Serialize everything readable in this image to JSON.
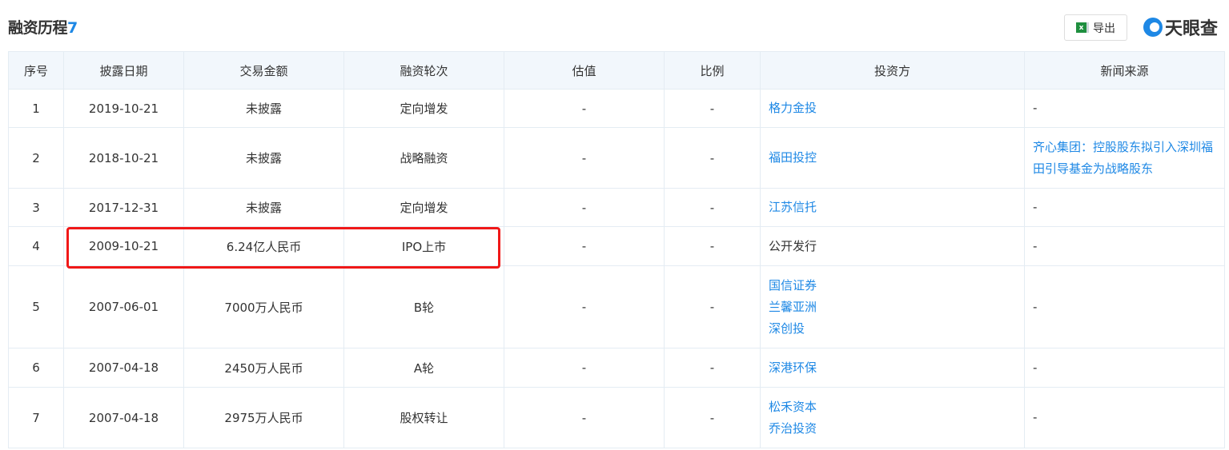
{
  "header": {
    "title": "融资历程",
    "count": "7",
    "export_label": "导出",
    "export_icon": "excel-icon",
    "logo_text": "天眼查"
  },
  "columns": [
    "序号",
    "披露日期",
    "交易金额",
    "融资轮次",
    "估值",
    "比例",
    "投资方",
    "新闻来源"
  ],
  "rows": [
    {
      "no": "1",
      "date": "2019-10-21",
      "amount": "未披露",
      "round": "定向增发",
      "valuation": "-",
      "ratio": "-",
      "investors": [
        "格力金投"
      ],
      "investors_linked": true,
      "news": "-"
    },
    {
      "no": "2",
      "date": "2018-10-21",
      "amount": "未披露",
      "round": "战略融资",
      "valuation": "-",
      "ratio": "-",
      "investors": [
        "福田投控"
      ],
      "investors_linked": true,
      "news": "齐心集团：控股股东拟引入深圳福田引导基金为战略股东"
    },
    {
      "no": "3",
      "date": "2017-12-31",
      "amount": "未披露",
      "round": "定向增发",
      "valuation": "-",
      "ratio": "-",
      "investors": [
        "江苏信托"
      ],
      "investors_linked": true,
      "news": "-"
    },
    {
      "no": "4",
      "date": "2009-10-21",
      "amount": "6.24亿人民币",
      "round": "IPO上市",
      "valuation": "-",
      "ratio": "-",
      "investors": [
        "公开发行"
      ],
      "investors_linked": false,
      "news": "-"
    },
    {
      "no": "5",
      "date": "2007-06-01",
      "amount": "7000万人民币",
      "round": "B轮",
      "valuation": "-",
      "ratio": "-",
      "investors": [
        "国信证券",
        "兰馨亚洲",
        "深创投"
      ],
      "investors_linked": true,
      "news": "-"
    },
    {
      "no": "6",
      "date": "2007-04-18",
      "amount": "2450万人民币",
      "round": "A轮",
      "valuation": "-",
      "ratio": "-",
      "investors": [
        "深港环保"
      ],
      "investors_linked": true,
      "news": "-"
    },
    {
      "no": "7",
      "date": "2007-04-18",
      "amount": "2975万人民币",
      "round": "股权转让",
      "valuation": "-",
      "ratio": "-",
      "investors": [
        "松禾资本",
        "乔治投资"
      ],
      "investors_linked": true,
      "news": "-"
    }
  ],
  "highlight": {
    "row": "4",
    "color": "#f01818"
  },
  "colors": {
    "link": "#1e88e5",
    "header_bg": "#f2f7fc",
    "border": "#e4ecf3"
  }
}
